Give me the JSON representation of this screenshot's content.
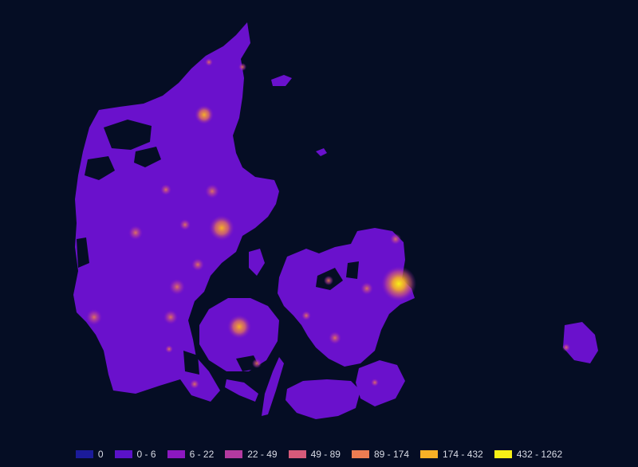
{
  "map": {
    "land_color": "#6a11cc",
    "background_color": "#050d24",
    "legend": [
      {
        "label": "0",
        "color": "#1b1b9a"
      },
      {
        "label": "0 - 6",
        "color": "#5a12c8"
      },
      {
        "label": "6 - 22",
        "color": "#8c18c0"
      },
      {
        "label": "22 - 49",
        "color": "#b33aa0"
      },
      {
        "label": "49 - 89",
        "color": "#d65a7a"
      },
      {
        "label": "89 - 174",
        "color": "#ec7c52"
      },
      {
        "label": "174 - 432",
        "color": "#f8b026"
      },
      {
        "label": "432 - 1262",
        "color": "#f8f016"
      }
    ]
  }
}
